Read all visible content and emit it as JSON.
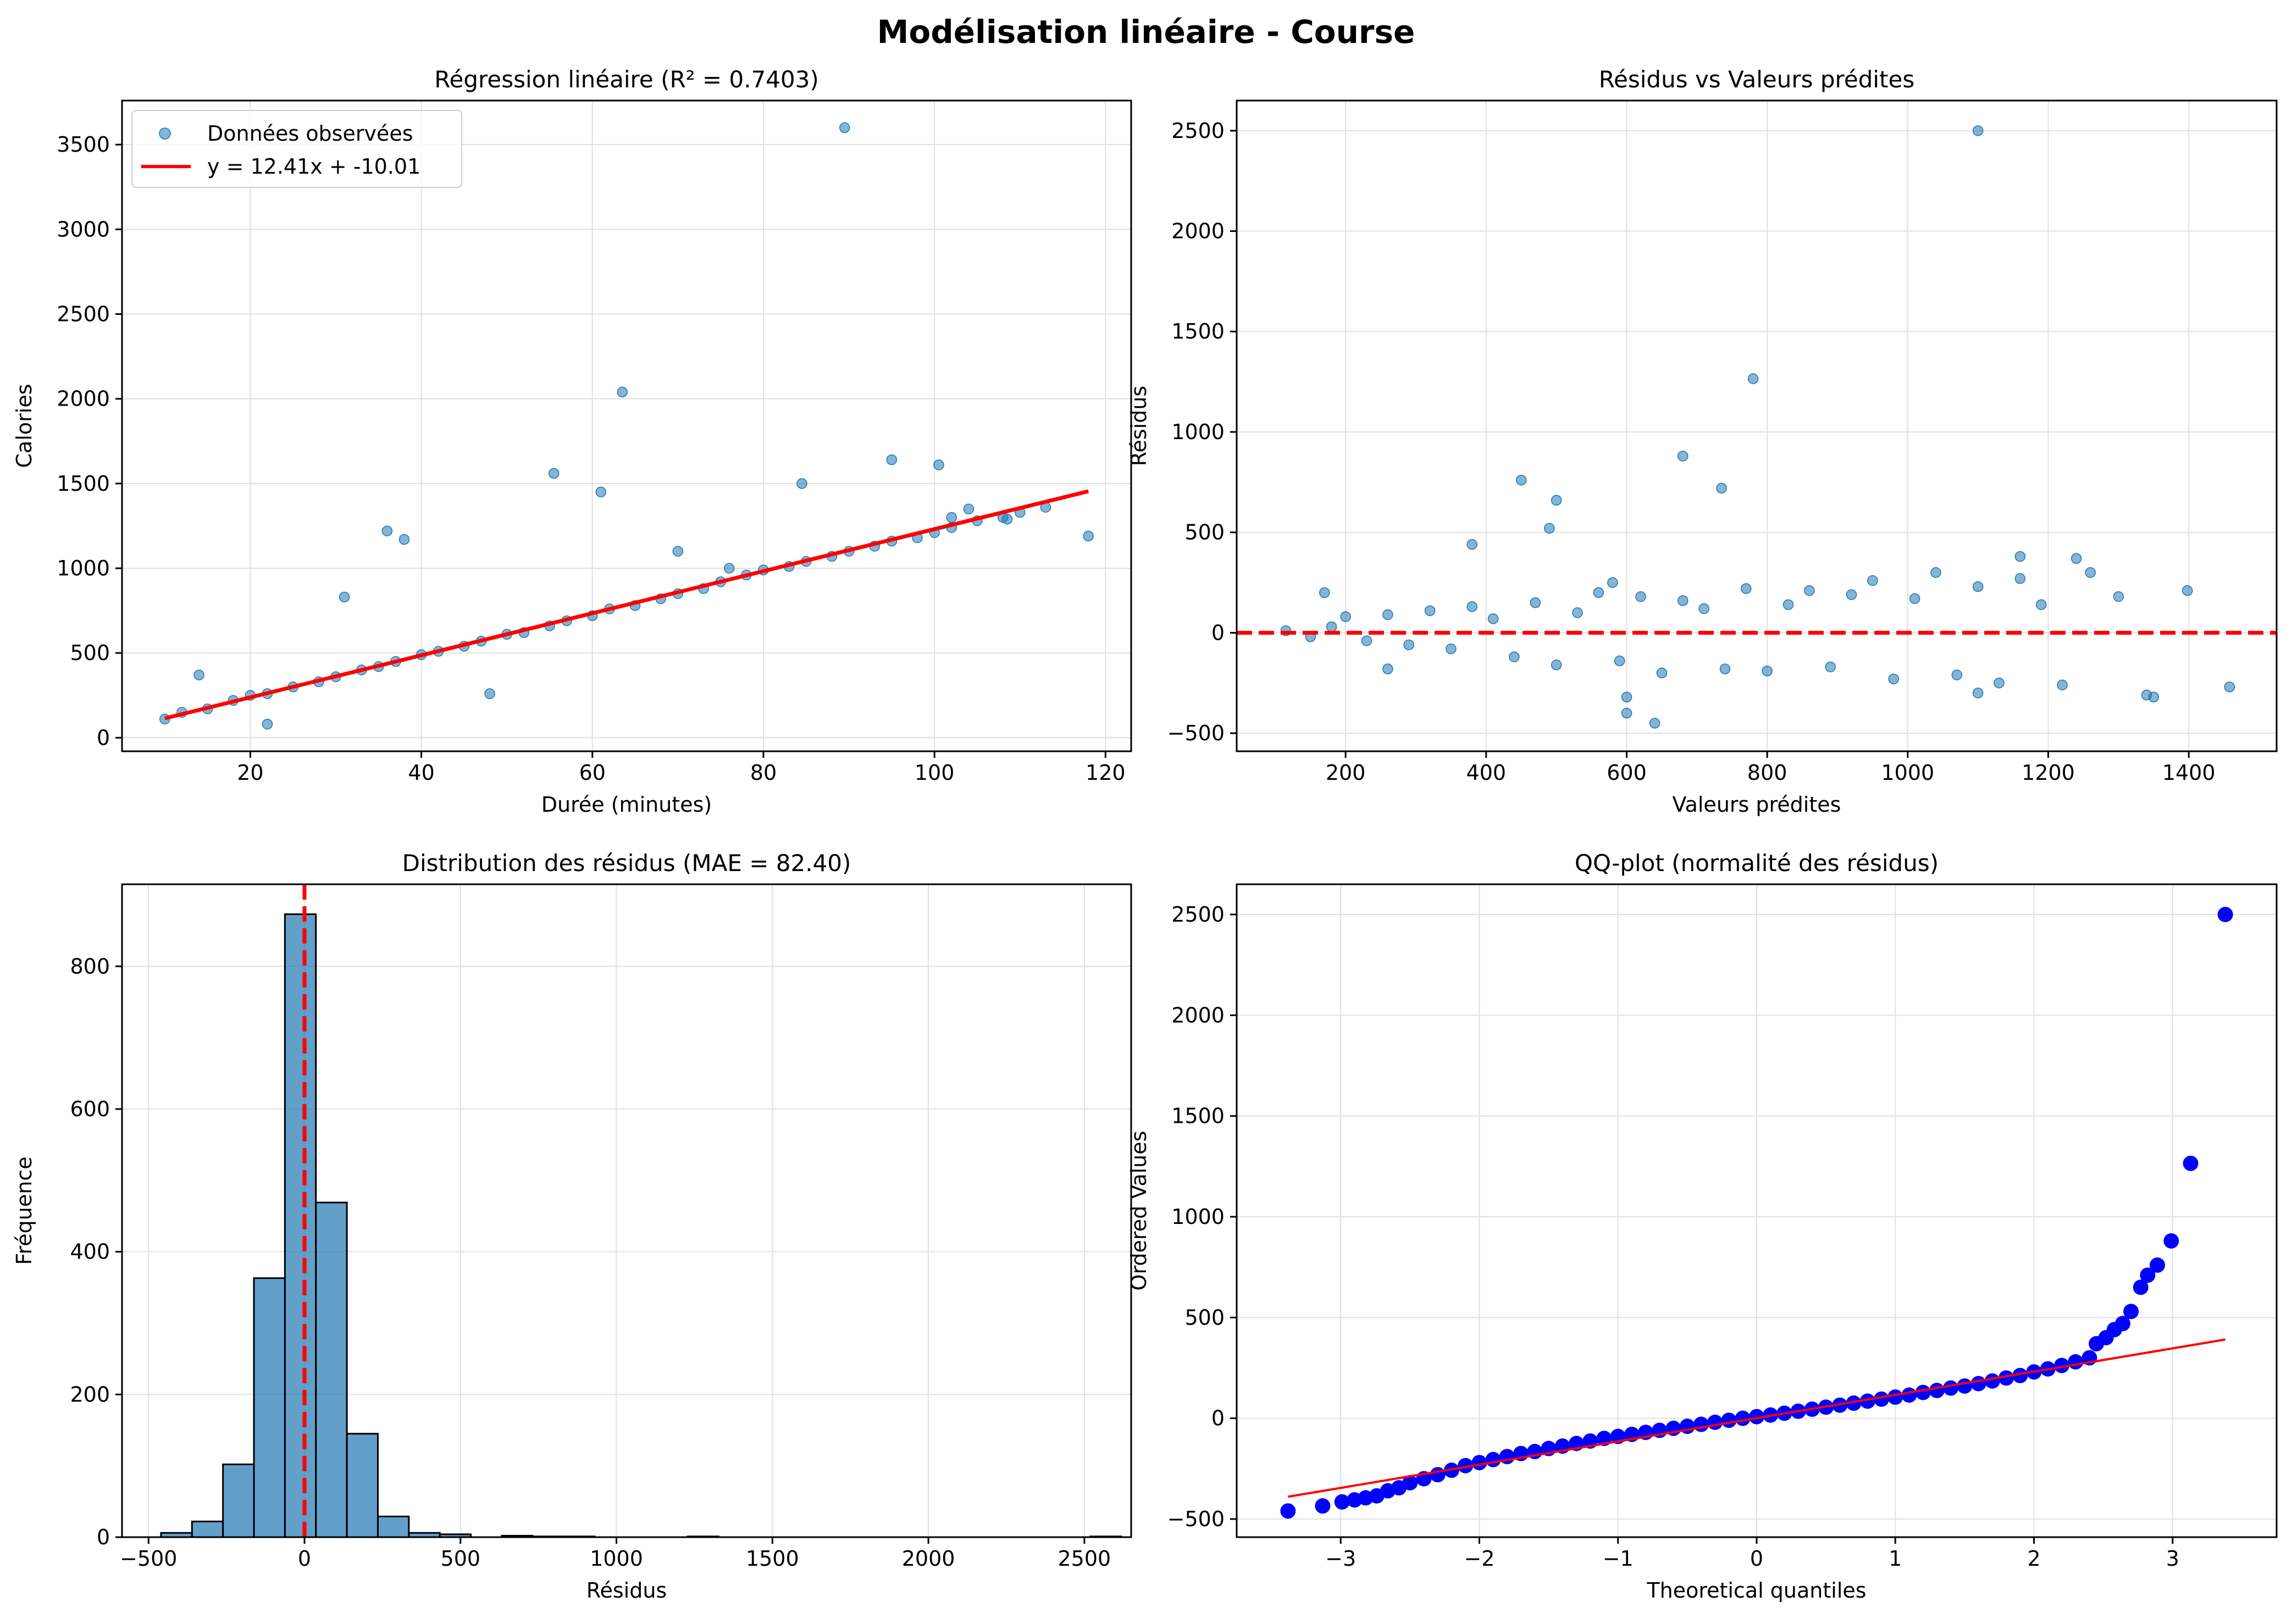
{
  "figure": {
    "suptitle": "Modélisation linéaire - Course"
  },
  "colors": {
    "scatter": "#1f77b4",
    "fit": "#ff0000",
    "qq_points": "#0000ff",
    "hist": "#1f77b4",
    "grid": "#e0e0e0"
  },
  "chart_data": [
    {
      "type": "scatter",
      "title": "Régression linéaire (R² = 0.7403)",
      "xlabel": "Durée (minutes)",
      "ylabel": "Calories",
      "xlim": [
        5,
        123
      ],
      "ylim": [
        -80,
        3760
      ],
      "xticks": [
        20,
        40,
        60,
        80,
        100,
        120
      ],
      "yticks": [
        0,
        500,
        1000,
        1500,
        2000,
        2500,
        3000,
        3500
      ],
      "grid": true,
      "legend_position": "upper-left",
      "series": [
        {
          "name": "Données observées",
          "kind": "points",
          "x": [
            10,
            12,
            15,
            18,
            20,
            22,
            25,
            28,
            30,
            33,
            35,
            37,
            40,
            42,
            45,
            47,
            50,
            52,
            55,
            57,
            60,
            62,
            65,
            68,
            70,
            73,
            75,
            78,
            80,
            83,
            85,
            88,
            90,
            93,
            95,
            98,
            100,
            102,
            105,
            108,
            110,
            113,
            118,
            89.5,
            63.5,
            55.5,
            61,
            36,
            38,
            14,
            31,
            22,
            48,
            84.5,
            95,
            100.5,
            70,
            76,
            102,
            104,
            108.5
          ],
          "y": [
            110,
            150,
            170,
            220,
            250,
            260,
            300,
            330,
            360,
            400,
            420,
            450,
            490,
            510,
            540,
            570,
            610,
            620,
            660,
            690,
            720,
            760,
            780,
            820,
            850,
            880,
            920,
            960,
            990,
            1010,
            1040,
            1070,
            1100,
            1130,
            1160,
            1180,
            1210,
            1240,
            1280,
            1300,
            1330,
            1360,
            1190,
            3600,
            2040,
            1560,
            1450,
            1220,
            1170,
            370,
            830,
            80,
            260,
            1500,
            1640,
            1610,
            1100,
            1000,
            1300,
            1350,
            1290
          ]
        },
        {
          "name": "y = 12.41x + -10.01",
          "kind": "line",
          "slope": 12.41,
          "intercept": -10.01,
          "x_range": [
            10,
            118
          ]
        }
      ]
    },
    {
      "type": "scatter",
      "title": "Résidus vs Valeurs prédites",
      "xlabel": "Valeurs prédites",
      "ylabel": "Résidus",
      "xlim": [
        45,
        1525
      ],
      "ylim": [
        -590,
        2650
      ],
      "xticks": [
        200,
        400,
        600,
        800,
        1000,
        1200,
        1400
      ],
      "yticks": [
        -500,
        0,
        500,
        1000,
        1500,
        2000,
        2500
      ],
      "grid": true,
      "hline": {
        "y": 0,
        "style": "dashed"
      },
      "series": [
        {
          "name": "",
          "kind": "points",
          "x": [
            115,
            150,
            180,
            200,
            230,
            260,
            290,
            320,
            350,
            380,
            410,
            440,
            470,
            500,
            530,
            560,
            590,
            620,
            650,
            680,
            710,
            740,
            770,
            800,
            830,
            860,
            890,
            920,
            950,
            980,
            1010,
            1040,
            1070,
            1100,
            1130,
            1160,
            1190,
            1220,
            1260,
            1300,
            1340,
            1398,
            1458,
            1100,
            780,
            680,
            735,
            450,
            490,
            500,
            380,
            170,
            260,
            600,
            640,
            1100,
            1160,
            1240,
            1350,
            580,
            600
          ],
          "y": [
            10,
            -20,
            30,
            80,
            -40,
            90,
            -60,
            110,
            -80,
            130,
            70,
            -120,
            150,
            -160,
            100,
            200,
            -140,
            180,
            -200,
            160,
            120,
            -180,
            220,
            -190,
            140,
            210,
            -170,
            190,
            260,
            -230,
            170,
            300,
            -210,
            230,
            -250,
            270,
            140,
            -260,
            300,
            180,
            -310,
            210,
            -270,
            2500,
            1265,
            880,
            720,
            760,
            520,
            660,
            440,
            200,
            -180,
            -400,
            -450,
            -300,
            380,
            370,
            -320,
            250,
            -320
          ]
        }
      ]
    },
    {
      "type": "bar",
      "subtype": "histogram",
      "title": "Distribution des résidus (MAE = 82.40)",
      "xlabel": "Résidus",
      "ylabel": "Fréquence",
      "xlim": [
        -585,
        2650
      ],
      "ylim": [
        0,
        915
      ],
      "xticks": [
        -500,
        0,
        500,
        1000,
        1500,
        2000,
        2500
      ],
      "yticks": [
        0,
        200,
        400,
        600,
        800
      ],
      "grid": true,
      "vline": {
        "x": 0,
        "style": "dashed"
      },
      "bin_start": -460,
      "bin_width": 99.3,
      "values": [
        6,
        22,
        102,
        363,
        873,
        469,
        145,
        29,
        6,
        4,
        0,
        2,
        1,
        1,
        0,
        0,
        0,
        1,
        0,
        0,
        0,
        0,
        0,
        0,
        0,
        0,
        0,
        0,
        0,
        0,
        1
      ]
    },
    {
      "type": "scatter",
      "title": "QQ-plot (normalité des résidus)",
      "xlabel": "Theoretical quantiles",
      "ylabel": "Ordered Values",
      "xlim": [
        -3.75,
        3.75
      ],
      "ylim": [
        -590,
        2650
      ],
      "xticks": [
        -3,
        -2,
        -1,
        0,
        1,
        2,
        3
      ],
      "yticks": [
        -500,
        0,
        500,
        1000,
        1500,
        2000,
        2500
      ],
      "grid": true,
      "series": [
        {
          "name": "",
          "kind": "points",
          "x": [
            -3.38,
            -3.13,
            -2.99,
            -2.9,
            -2.82,
            -2.74,
            -2.66,
            -2.58,
            -2.5,
            -2.4,
            -2.3,
            -2.2,
            -2.1,
            -2.0,
            -1.9,
            -1.8,
            -1.7,
            -1.6,
            -1.5,
            -1.4,
            -1.3,
            -1.2,
            -1.1,
            -1.0,
            -0.9,
            -0.8,
            -0.7,
            -0.6,
            -0.5,
            -0.4,
            -0.3,
            -0.2,
            -0.1,
            0.0,
            0.1,
            0.2,
            0.3,
            0.4,
            0.5,
            0.6,
            0.7,
            0.8,
            0.9,
            1.0,
            1.1,
            1.2,
            1.3,
            1.4,
            1.5,
            1.6,
            1.7,
            1.8,
            1.9,
            2.0,
            2.1,
            2.2,
            2.3,
            2.4,
            2.45,
            2.52,
            2.58,
            2.64,
            2.7,
            2.77,
            2.82,
            2.89,
            2.99,
            3.13,
            3.38
          ],
          "y": [
            -460,
            -435,
            -415,
            -405,
            -395,
            -385,
            -360,
            -345,
            -320,
            -300,
            -280,
            -258,
            -235,
            -220,
            -205,
            -190,
            -175,
            -165,
            -150,
            -138,
            -125,
            -113,
            -100,
            -90,
            -80,
            -70,
            -60,
            -50,
            -40,
            -30,
            -20,
            -10,
            0,
            8,
            16,
            25,
            35,
            45,
            55,
            65,
            75,
            85,
            95,
            105,
            115,
            128,
            138,
            150,
            160,
            172,
            185,
            200,
            212,
            230,
            245,
            262,
            280,
            300,
            370,
            400,
            440,
            470,
            530,
            650,
            710,
            760,
            880,
            1265,
            2500
          ]
        },
        {
          "name": "",
          "kind": "line",
          "slope": 115.4,
          "intercept": 0.7,
          "x_range": [
            -3.38,
            3.38
          ]
        }
      ]
    }
  ]
}
